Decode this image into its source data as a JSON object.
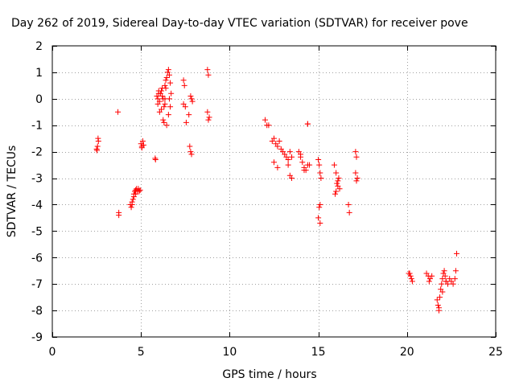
{
  "chart_data": {
    "type": "scatter",
    "title": "Day 262 of 2019, Sidereal Day-to-day VTEC variation (SDTVAR) for receiver pove",
    "xlabel": "GPS time / hours",
    "ylabel": "SDTVAR / TECUs",
    "xlim": [
      0,
      25
    ],
    "ylim": [
      -9,
      2
    ],
    "x_ticks": [
      0,
      5,
      10,
      15,
      20,
      25
    ],
    "y_ticks": [
      2,
      1,
      0,
      -1,
      -2,
      -3,
      -4,
      -5,
      -6,
      -7,
      -8,
      -9
    ],
    "grid": true,
    "marker": "+",
    "color": "#ff0000",
    "series": [
      {
        "name": "SDTVAR",
        "x": [
          2.5,
          2.55,
          2.6,
          2.52,
          2.58,
          3.7,
          3.75,
          3.75,
          4.4,
          4.45,
          4.5,
          4.55,
          4.6,
          4.65,
          4.7,
          4.75,
          4.8,
          4.85,
          4.9,
          4.95,
          4.5,
          4.6,
          4.7,
          5.0,
          5.05,
          5.1,
          5.15,
          5.05,
          5.8,
          5.82,
          5.9,
          5.95,
          6.0,
          6.05,
          6.1,
          6.15,
          6.2,
          6.25,
          6.3,
          6.35,
          6.4,
          6.45,
          6.5,
          6.55,
          6.6,
          6.65,
          6.7,
          5.95,
          6.05,
          6.15,
          6.25,
          6.35,
          6.45,
          6.55,
          6.65,
          6.0,
          6.2,
          6.4,
          6.6,
          6.3,
          6.35,
          7.4,
          7.45,
          7.5,
          7.55,
          7.4,
          7.8,
          7.85,
          7.9,
          7.75,
          7.8,
          7.85,
          7.7,
          8.75,
          8.8,
          8.85,
          8.75,
          8.8,
          12.0,
          12.1,
          12.2,
          12.4,
          12.5,
          12.6,
          12.7,
          12.8,
          12.9,
          13.0,
          13.1,
          13.2,
          13.3,
          13.4,
          13.5,
          12.5,
          12.7,
          13.3,
          13.4,
          13.5,
          13.9,
          14.0,
          14.1,
          14.2,
          14.3,
          14.4,
          14.5,
          14.0,
          14.2,
          14.4,
          15.0,
          15.05,
          15.1,
          15.15,
          15.0,
          15.1,
          15.05,
          15.1,
          15.9,
          16.0,
          16.1,
          16.2,
          15.95,
          16.05,
          16.15,
          16.0,
          16.1,
          16.7,
          16.75,
          17.1,
          17.15,
          17.2,
          17.1,
          17.15,
          14.4,
          20.1,
          20.2,
          20.3,
          20.15,
          20.25,
          21.1,
          21.2,
          21.3,
          21.4,
          21.25,
          21.7,
          21.75,
          21.8,
          21.85,
          21.9,
          21.95,
          22.0,
          22.05,
          22.1,
          22.15,
          22.2,
          22.3,
          22.4,
          22.5,
          22.6,
          22.7,
          22.75,
          22.8,
          21.8,
          22.0,
          22.2
        ],
        "y": [
          -1.9,
          -1.8,
          -1.6,
          -1.95,
          -1.5,
          -0.5,
          -4.3,
          -4.4,
          -4.0,
          -4.1,
          -4.0,
          -3.8,
          -3.6,
          -3.5,
          -3.45,
          -3.4,
          -3.5,
          -3.4,
          -3.5,
          -3.45,
          -3.9,
          -3.7,
          -3.6,
          -1.7,
          -1.8,
          -1.6,
          -1.75,
          -1.85,
          -2.25,
          -2.3,
          0.1,
          -0.2,
          0.3,
          -0.1,
          0.2,
          -0.4,
          0.4,
          0.0,
          -0.3,
          0.5,
          0.7,
          0.8,
          1.0,
          1.1,
          0.9,
          0.6,
          0.2,
          0.0,
          -0.5,
          0.3,
          -0.8,
          -0.2,
          -1.0,
          -0.6,
          -0.3,
          0.2,
          0.1,
          0.4,
          0.0,
          -0.9,
          0.0,
          0.7,
          0.5,
          -0.3,
          -0.9,
          -0.2,
          0.1,
          0.0,
          -0.1,
          -1.8,
          -2.0,
          -2.1,
          -0.6,
          1.1,
          0.9,
          -0.7,
          -0.5,
          -0.8,
          -0.8,
          -1.0,
          -1.0,
          -1.6,
          -1.5,
          -1.7,
          -1.8,
          -1.6,
          -1.9,
          -2.0,
          -2.1,
          -2.2,
          -2.3,
          -2.0,
          -2.2,
          -2.4,
          -2.6,
          -2.5,
          -2.9,
          -3.0,
          -2.0,
          -2.1,
          -2.4,
          -2.6,
          -2.7,
          -2.5,
          -2.5,
          -2.2,
          -2.7,
          -0.95,
          -2.3,
          -2.5,
          -2.8,
          -3.0,
          -4.5,
          -4.7,
          -4.1,
          -4.0,
          -2.5,
          -2.8,
          -3.1,
          -3.4,
          -3.6,
          -3.2,
          -3.0,
          -3.5,
          -3.3,
          -4.0,
          -4.3,
          -2.0,
          -2.2,
          -3.0,
          -2.8,
          -3.1,
          -0.95,
          -6.6,
          -6.7,
          -6.9,
          -6.6,
          -6.8,
          -6.6,
          -6.7,
          -6.8,
          -6.7,
          -6.9,
          -7.6,
          -7.8,
          -7.9,
          -7.5,
          -7.2,
          -7.0,
          -6.8,
          -6.6,
          -6.5,
          -6.7,
          -6.9,
          -7.0,
          -6.8,
          -6.9,
          -7.0,
          -6.8,
          -6.5,
          -5.85,
          -8.0,
          -7.3,
          -6.9
        ]
      }
    ]
  }
}
